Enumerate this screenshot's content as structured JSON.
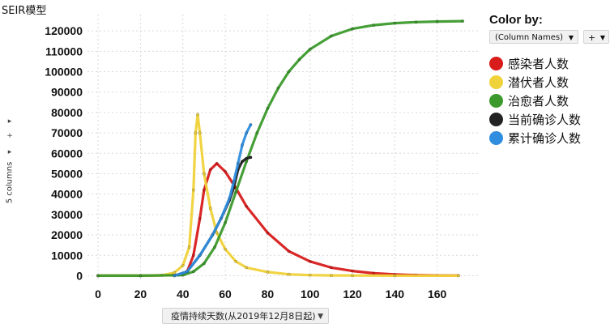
{
  "app": {
    "title": "SEIR模型"
  },
  "left_rail": {
    "columns_label": "5 columns",
    "add_label": "+",
    "expand_label": "▸"
  },
  "x_axis_selector": {
    "value": "疫情持续天数(从2019年12月8日起)"
  },
  "legend": {
    "title": "Color by:",
    "colorby_value": "(Column Names)",
    "plus_label": "+",
    "items": [
      {
        "label": "感染者人数",
        "color": "#d81b1b"
      },
      {
        "label": "潜伏者人数",
        "color": "#f0d23a"
      },
      {
        "label": "治愈者人数",
        "color": "#3c9a2c"
      },
      {
        "label": "当前确诊人数",
        "color": "#222222"
      },
      {
        "label": "累计确诊人数",
        "color": "#2f8ee0"
      }
    ]
  },
  "chart_data": {
    "type": "line",
    "title": "SEIR模型",
    "xlabel": "疫情持续天数(从2019年12月8日起)",
    "ylabel": "",
    "xlim": [
      -5,
      180
    ],
    "ylim": [
      -3000,
      128000
    ],
    "xticks": [
      0,
      20,
      40,
      60,
      80,
      100,
      120,
      140,
      160
    ],
    "yticks": [
      0,
      10000,
      20000,
      30000,
      40000,
      50000,
      60000,
      70000,
      80000,
      90000,
      100000,
      110000,
      120000
    ],
    "grid": true,
    "legend_position": "right",
    "series": [
      {
        "name": "感染者人数",
        "color": "#d81b1b",
        "x": [
          0,
          20,
          38,
          42,
          45,
          48,
          50,
          53,
          56,
          60,
          65,
          70,
          80,
          90,
          100,
          110,
          120,
          130,
          140,
          150,
          160,
          170
        ],
        "y": [
          0,
          0,
          300,
          2000,
          10000,
          28000,
          42000,
          52000,
          55000,
          51000,
          43000,
          34000,
          21000,
          12000,
          7000,
          4000,
          2300,
          1200,
          600,
          300,
          150,
          80
        ]
      },
      {
        "name": "潜伏者人数",
        "color": "#f0d23a",
        "x": [
          0,
          20,
          30,
          36,
          40,
          43,
          45,
          46,
          47,
          48,
          50,
          53,
          56,
          60,
          65,
          70,
          80,
          90,
          100,
          110,
          120,
          140,
          170
        ],
        "y": [
          0,
          0,
          200,
          1500,
          5000,
          14000,
          42000,
          70000,
          79000,
          70000,
          50000,
          33000,
          21000,
          13000,
          7000,
          4000,
          1800,
          700,
          300,
          150,
          80,
          30,
          10
        ]
      },
      {
        "name": "治愈者人数",
        "color": "#3c9a2c",
        "x": [
          0,
          20,
          40,
          45,
          50,
          55,
          60,
          65,
          70,
          75,
          80,
          85,
          90,
          95,
          100,
          110,
          120,
          130,
          140,
          150,
          160,
          172
        ],
        "y": [
          0,
          0,
          300,
          2000,
          6000,
          14000,
          26000,
          41000,
          56000,
          70000,
          82000,
          92000,
          100000,
          106000,
          111000,
          117500,
          121000,
          122800,
          123800,
          124300,
          124600,
          124800
        ]
      },
      {
        "name": "当前确诊人数",
        "color": "#222222",
        "x": [
          36,
          42,
          48,
          54,
          58,
          62,
          64,
          66,
          68,
          70,
          72
        ],
        "y": [
          0,
          2000,
          10000,
          20000,
          28000,
          37000,
          43000,
          52000,
          56000,
          57500,
          58000
        ]
      },
      {
        "name": "累计确诊人数",
        "color": "#2f8ee0",
        "x": [
          36,
          42,
          48,
          54,
          58,
          62,
          64,
          66,
          68,
          70,
          72
        ],
        "y": [
          0,
          2000,
          10000,
          20000,
          28000,
          38000,
          46000,
          55000,
          64000,
          70000,
          74000
        ]
      }
    ]
  }
}
